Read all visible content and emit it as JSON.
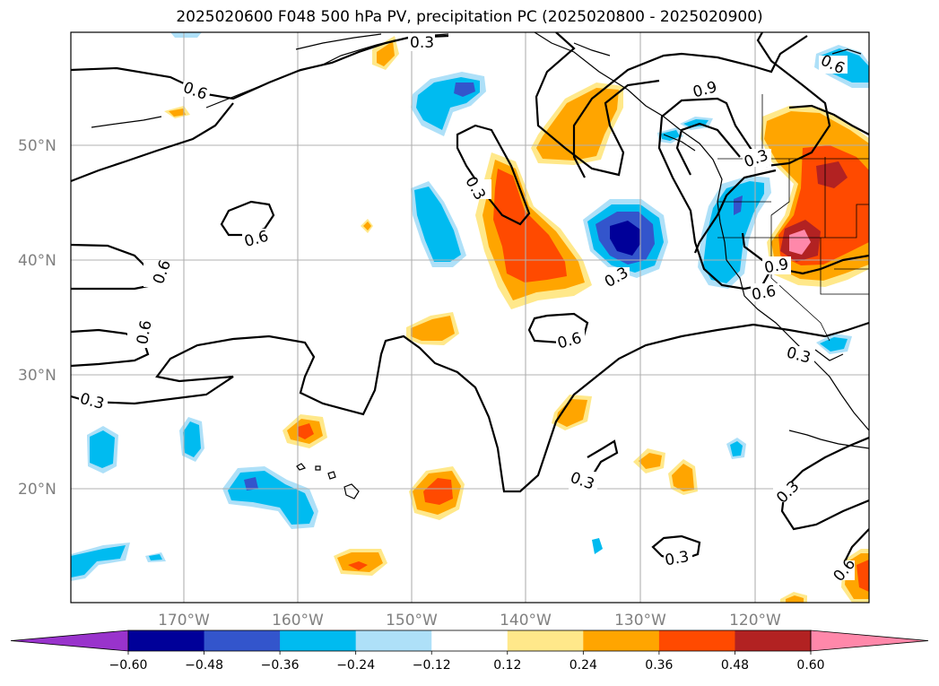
{
  "title": "2025020600 F048 500 hPa PV, precipitation PC (2025020800 - 2025020900)",
  "lat_labels": [
    "50°N",
    "40°N",
    "30°N",
    "20°N"
  ],
  "lon_labels": [
    "170°W",
    "160°W",
    "150°W",
    "140°W",
    "130°W",
    "120°W"
  ],
  "contour_labels": {
    "a": "0.3",
    "b": "0.6",
    "c": "0.6",
    "d": "0.6",
    "e": "0.6",
    "f": "0.3",
    "g": "0.3",
    "h": "0.6",
    "i": "0.9",
    "j": "0.3",
    "k": "0.6",
    "l": "0.9",
    "m": "0.3",
    "n": "0.6",
    "o": "0.3",
    "p": "0.3",
    "q": "0.3",
    "r": "0.3",
    "s": "0.6"
  },
  "colorbar": {
    "ticks": [
      "−0.60",
      "−0.48",
      "−0.36",
      "−0.24",
      "−0.12",
      "0.12",
      "0.24",
      "0.36",
      "0.48",
      "0.60"
    ],
    "colors": [
      "#9933cc",
      "#000099",
      "#3355cc",
      "#00bbf0",
      "#aee0f8",
      "#ffffff",
      "#ffe88a",
      "#ffa500",
      "#ff4a00",
      "#b22222",
      "#ff88aa"
    ]
  },
  "shading_colors": {
    "neg_light": "#aee0f8",
    "neg_mid": "#00bbf0",
    "neg_dark": "#3355cc",
    "neg_darkest": "#000099",
    "pos_light": "#ffe88a",
    "pos_mid": "#ffa500",
    "pos_dark": "#ff4a00",
    "pos_darker": "#b22222",
    "pos_max": "#ff88aa"
  }
}
